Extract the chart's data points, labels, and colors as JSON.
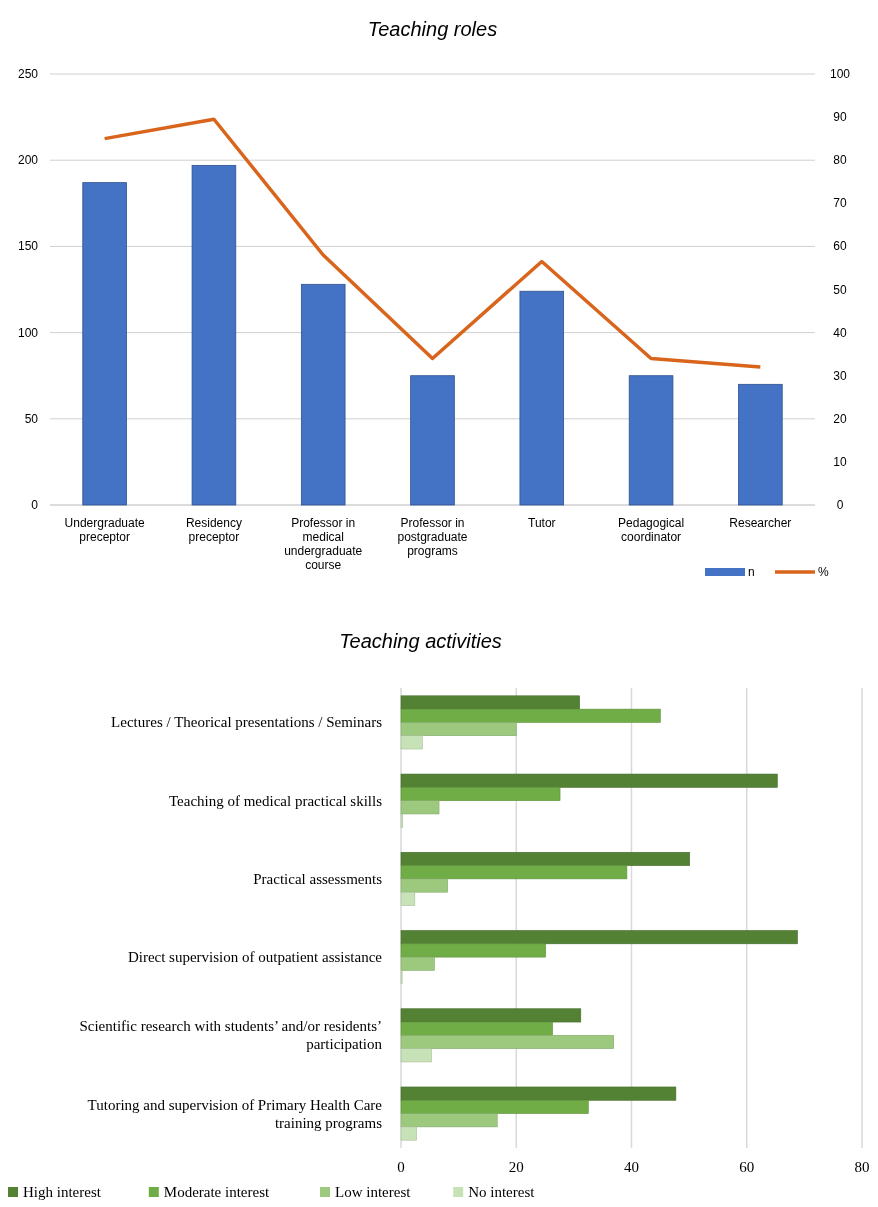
{
  "chart_data": [
    {
      "type": "bar",
      "title": "Teaching roles",
      "categories": [
        "Undergraduate preceptor",
        "Residency preceptor",
        "Professor in medical undergraduate course",
        "Professor in postgraduate programs",
        "Tutor",
        "Pedagogical coordinator",
        "Researcher"
      ],
      "series": [
        {
          "name": "n",
          "type": "bar",
          "color": "#4472c4",
          "values": [
            187,
            197,
            128,
            75,
            124,
            75,
            70
          ]
        },
        {
          "name": "%",
          "type": "line",
          "axis": "y2",
          "color": "#d9651c",
          "values": [
            85,
            89.5,
            58,
            34,
            56.5,
            34,
            32
          ]
        }
      ],
      "ylim": [
        0,
        250
      ],
      "yticks": [
        0,
        50,
        100,
        150,
        200,
        250
      ],
      "y2lim": [
        0,
        100
      ],
      "y2ticks": [
        0,
        10,
        20,
        30,
        40,
        50,
        60,
        70,
        80,
        90,
        100
      ],
      "grid": "y",
      "legend": "bottom right",
      "marker": "none"
    },
    {
      "type": "bar",
      "orientation": "horizontal",
      "title": "Teaching activities",
      "categories": [
        "Lectures / Theorical presentations / Seminars",
        "Teaching of medical practical skills",
        "Practical assessments",
        "Direct supervision of outpatient assistance",
        "Scientific research with students’ and/or residents’ participation",
        "Tutoring and supervision of Primary Health Care training programs"
      ],
      "series": [
        {
          "name": "High interest",
          "color": "#548235",
          "values": [
            31,
            65.3,
            50.1,
            68.8,
            31.2,
            47.7
          ]
        },
        {
          "name": "Moderate interest",
          "color": "#70ad47",
          "values": [
            45,
            27.6,
            39.2,
            25.1,
            26.3,
            32.5
          ]
        },
        {
          "name": "Low interest",
          "color": "#9dc97f",
          "values": [
            20,
            6.6,
            8.1,
            5.8,
            36.9,
            16.7
          ]
        },
        {
          "name": "No interest",
          "color": "#c8e2b8",
          "values": [
            3.7,
            0.3,
            2.4,
            0.2,
            5.3,
            2.7
          ]
        }
      ],
      "xlim": [
        0,
        80
      ],
      "xticks": [
        0,
        20,
        40,
        60,
        80
      ],
      "grid": "x",
      "legend": "bottom"
    }
  ]
}
